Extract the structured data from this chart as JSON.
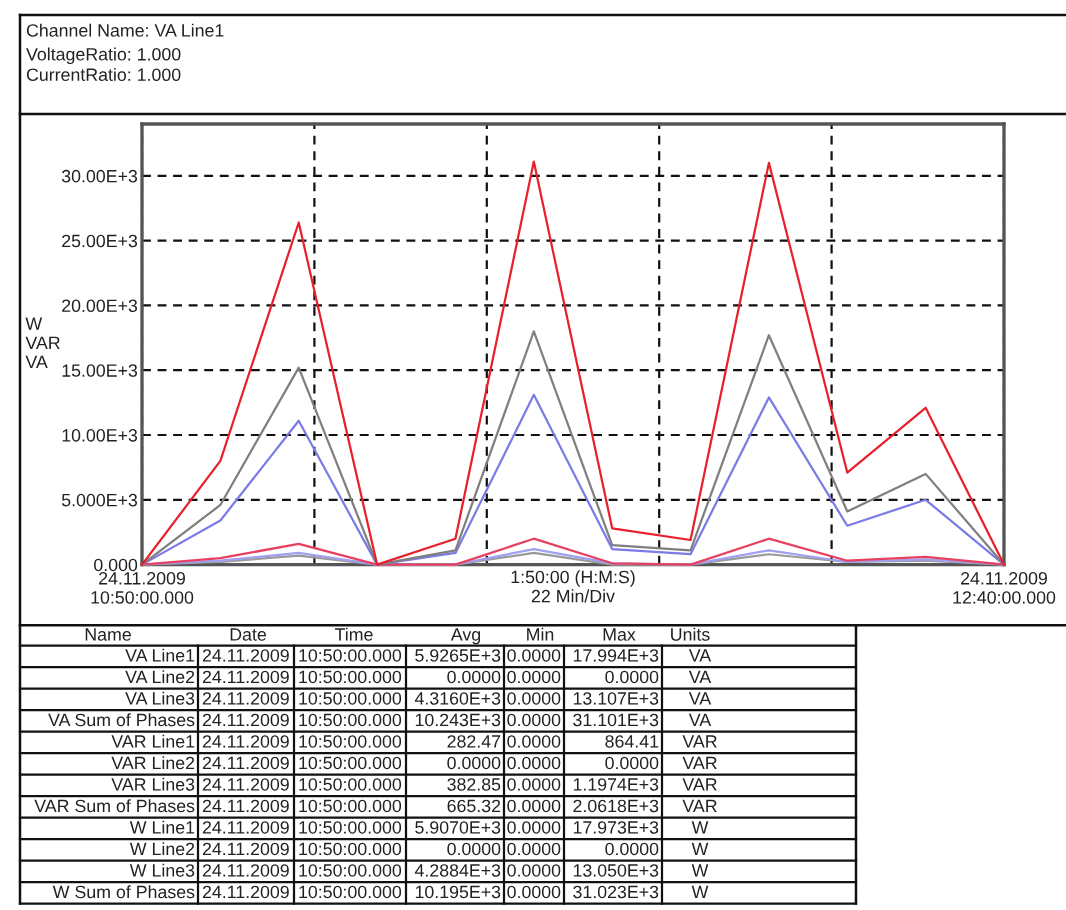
{
  "chart_data": {
    "type": "line",
    "title": "Channel Name: VA Line1",
    "subtitle": "VoltageRatio: 1.000\nCurrentRatio: 1.000",
    "xlabel": "1:50:00 (H:M:S)\n22 Min/Div",
    "ylabel": "W\nVAR\nVA",
    "x": [
      "2009-11-24T10:50",
      "2009-11-24T11:00",
      "2009-11-24T11:10",
      "2009-11-24T11:20",
      "2009-11-24T11:30",
      "2009-11-24T11:40",
      "2009-11-24T11:50",
      "2009-11-24T12:00",
      "2009-11-24T12:10",
      "2009-11-24T12:20",
      "2009-11-24T12:30",
      "2009-11-24T12:40"
    ],
    "series": [
      {
        "color": "#9a9a9a",
        "values": [
          0,
          200,
          700,
          0,
          0,
          900,
          0,
          0,
          800,
          200,
          300,
          0
        ]
      },
      {
        "color": "#a0a0f0",
        "values": [
          0,
          300,
          900,
          0,
          0,
          1200,
          100,
          0,
          1100,
          200,
          400,
          0
        ]
      },
      {
        "color": "#e84060",
        "values": [
          0,
          500,
          1600,
          0,
          0,
          2000,
          100,
          0,
          2000,
          300,
          600,
          0
        ]
      },
      {
        "color": "#7b7be6",
        "values": [
          0,
          3400,
          11100,
          0,
          900,
          13100,
          1200,
          800,
          12900,
          3000,
          5000,
          0
        ]
      },
      {
        "color": "#7f7f7f",
        "values": [
          0,
          4600,
          15200,
          0,
          1100,
          18000,
          1500,
          1100,
          17700,
          4100,
          7000,
          0
        ]
      },
      {
        "color": "#e8202c",
        "values": [
          0,
          8000,
          26400,
          0,
          2000,
          31100,
          2800,
          1900,
          31000,
          7100,
          12100,
          0
        ]
      }
    ],
    "xlim": [
      "2009-11-24T10:50",
      "2009-11-24T12:40"
    ],
    "xticks": [
      {
        "value": "2009-11-24T10:50",
        "label": "24.11.2009\n10:50:00.000"
      },
      {
        "value": "2009-11-24T11:12",
        "label": null
      },
      {
        "value": "2009-11-24T11:34",
        "label": null
      },
      {
        "value": "2009-11-24T11:56",
        "label": null
      },
      {
        "value": "2009-11-24T12:18",
        "label": null
      },
      {
        "value": "2009-11-24T12:40",
        "label": "24.11.2009\n12:40:00.000"
      }
    ],
    "ylim": [
      0,
      34000
    ],
    "yticks": [
      {
        "value": 0,
        "label": "0.000"
      },
      {
        "value": 5000,
        "label": "5.000E+3"
      },
      {
        "value": 10000,
        "label": "10.00E+3"
      },
      {
        "value": 15000,
        "label": "15.00E+3"
      },
      {
        "value": 20000,
        "label": "20.00E+3"
      },
      {
        "value": 25000,
        "label": "25.00E+3"
      },
      {
        "value": 30000,
        "label": "30.00E+3"
      }
    ],
    "grid": true,
    "annotations": [
      "Name",
      "Date",
      "Time",
      "Avg",
      "Min",
      "Max",
      "Units",
      "VA Line1",
      "24.11.2009",
      "10:50:00.000",
      "5.9265E+3",
      "0.0000",
      "17.994E+3",
      "VA",
      "VA Line2",
      "24.11.2009",
      "10:50:00.000",
      "0.0000",
      "0.0000",
      "0.0000",
      "VA",
      "VA Line3",
      "24.11.2009",
      "10:50:00.000",
      "4.3160E+3",
      "0.0000",
      "13.107E+3",
      "VA",
      "VA Sum of Phases",
      "24.11.2009",
      "10:50:00.000",
      "10.243E+3",
      "0.0000",
      "31.101E+3",
      "VA",
      "VAR Line1",
      "24.11.2009",
      "10:50:00.000",
      "282.47",
      "0.0000",
      "864.41",
      "VAR",
      "VAR Line2",
      "24.11.2009",
      "10:50:00.000",
      "0.0000",
      "0.0000",
      "0.0000",
      "VAR",
      "VAR Line3",
      "24.11.2009",
      "10:50:00.000",
      "382.85",
      "0.0000",
      "1.1974E+3",
      "VAR",
      "VAR Sum of Phases",
      "24.11.2009",
      "10:50:00.000",
      "665.32",
      "0.0000",
      "2.0618E+3",
      "VAR",
      "W Line1",
      "24.11.2009",
      "10:50:00.000",
      "5.9070E+3",
      "0.0000",
      "17.973E+3",
      "W",
      "W Line2",
      "24.11.2009",
      "10:50:00.000",
      "0.0000",
      "0.0000",
      "0.0000",
      "W",
      "W Line3",
      "24.11.2009",
      "10:50:00.000",
      "4.2884E+3",
      "0.0000",
      "13.050E+3",
      "W",
      "W Sum of Phases",
      "24.11.2009",
      "10:50:00.000",
      "10.195E+3",
      "0.0000",
      "31.023E+3",
      "W"
    ]
  }
}
